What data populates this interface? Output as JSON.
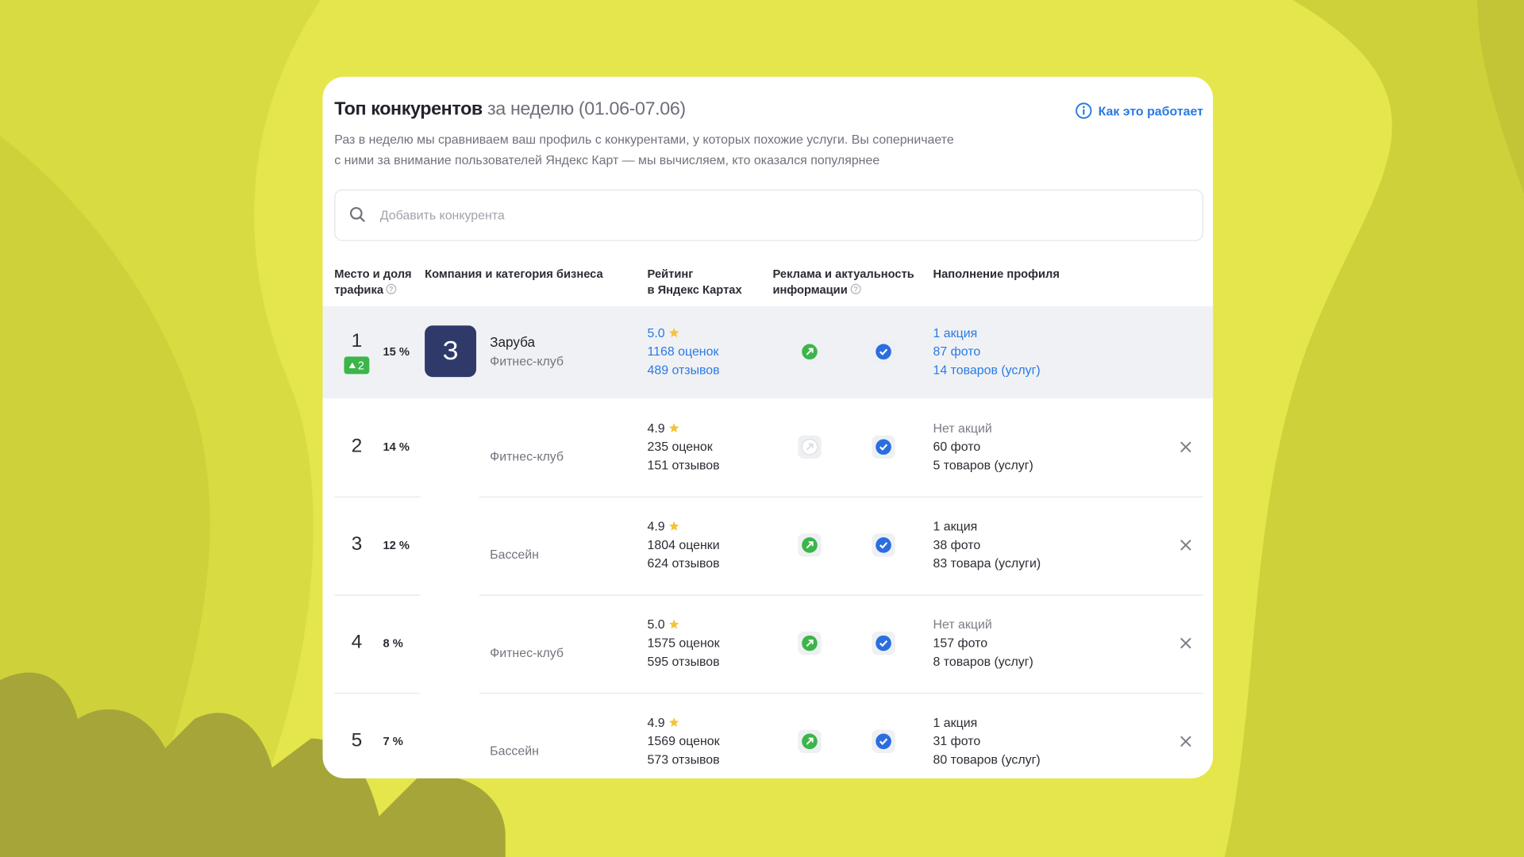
{
  "header": {
    "title": "Топ конкурентов",
    "period": "за неделю (01.06-07.06)",
    "help_link": "Как это работает",
    "description": [
      "Раз в неделю мы сравниваем ваш профиль с конкурентами, у которых похожие услуги. Вы соперничаете",
      "с ними за внимание пользователей Яндекс Карт — мы вычисляем, кто оказался популярнее"
    ]
  },
  "search": {
    "placeholder": "Добавить конкурента"
  },
  "columns": [
    [
      "Место и доля",
      "трафика"
    ],
    [
      "Компания и категория бизнеса"
    ],
    [
      "Рейтинг",
      "в Яндекс Картах"
    ],
    [
      "Реклама и актуальность",
      "информации"
    ],
    [
      "Наполнение профиля"
    ]
  ],
  "rows": [
    {
      "rank": "1",
      "change": "2",
      "share": "15 %",
      "logo": "З",
      "name": "Заруба",
      "category": "Фитнес-клуб",
      "rating": "5.0",
      "ratings_count": "1168 оценок",
      "reviews": "489 отзывов",
      "promo": "1 акция",
      "photos": "87 фото",
      "products": "14 товаров (услуг)"
    },
    {
      "rank": "2",
      "share": "14 %",
      "category": "Фитнес-клуб",
      "rating": "4.9",
      "ratings_count": "235 оценок",
      "reviews": "151 отзывов",
      "promo": "Нет акций",
      "photos": "60 фото",
      "products": "5 товаров (услуг)"
    },
    {
      "rank": "3",
      "share": "12 %",
      "category": "Бассейн",
      "rating": "4.9",
      "ratings_count": "1804 оценки",
      "reviews": "624 отзывов",
      "promo": "1 акция",
      "photos": "38 фото",
      "products": "83 товара (услуги)"
    },
    {
      "rank": "4",
      "share": "8 %",
      "category": "Фитнес-клуб",
      "rating": "5.0",
      "ratings_count": "1575 оценок",
      "reviews": "595 отзывов",
      "promo": "Нет акций",
      "photos": "157 фото",
      "products": "8 товаров (услуг)"
    },
    {
      "rank": "5",
      "share": "7 %",
      "category": "Бассейн",
      "rating": "4.9",
      "ratings_count": "1569 оценок",
      "reviews": "573 отзывов",
      "promo": "1 акция",
      "photos": "31 фото",
      "products": "80 товаров (услуг)"
    }
  ]
}
